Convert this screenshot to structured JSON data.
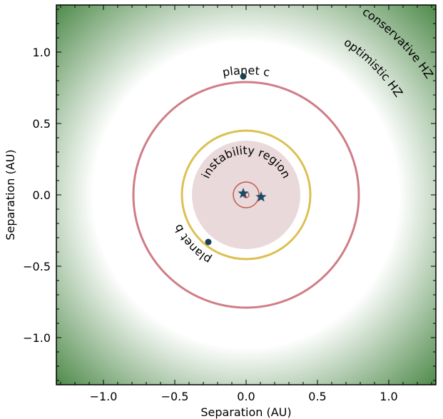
{
  "chart_data": {
    "type": "scatter",
    "xlabel": "Separation (AU)",
    "ylabel": "Separation (AU)",
    "xlim": [
      -1.33,
      1.33
    ],
    "ylim": [
      -1.33,
      1.33
    ],
    "xticks": [
      -1.0,
      -0.5,
      0.0,
      0.5,
      1.0
    ],
    "yticks": [
      -1.0,
      -0.5,
      0.0,
      0.5,
      1.0
    ],
    "xtick_labels": [
      "−1.0",
      "−0.5",
      "0.0",
      "0.5",
      "1.0"
    ],
    "ytick_labels": [
      "−1.0",
      "−0.5",
      "0.0",
      "0.5",
      "1.0"
    ],
    "grid": false,
    "colors": {
      "hz_outer": "#4e8a4a",
      "hz_inner": "#ffffff",
      "instability": "#ead9da",
      "orbit_c": "#d07c86",
      "orbit_b": "#dcc052",
      "binary_orbit": "#c05a4e",
      "star": "#1c4a66",
      "planet": "#1c3f55"
    },
    "zones": {
      "conservative_hz_outer_radius": 1.0,
      "optimistic_hz_outer_radius": 1.07,
      "optimistic_hz_inner_radius": 0.35,
      "instability_radius": 0.38
    },
    "orbits": [
      {
        "label": "planet c",
        "center": [
          0.0,
          0.0
        ],
        "radius": 0.79
      },
      {
        "label": "planet b",
        "center": [
          0.0,
          0.0
        ],
        "radius": 0.45
      },
      {
        "label": "binary",
        "center": [
          0.0,
          0.0
        ],
        "radius": 0.09
      },
      {
        "label": "binary",
        "center": [
          0.0,
          0.0
        ],
        "radius": 0.02
      }
    ],
    "stars": [
      {
        "x": -0.02,
        "y": 0.01
      },
      {
        "x": 0.105,
        "y": -0.015
      }
    ],
    "planets": [
      {
        "name": "planet c",
        "x": -0.02,
        "y": 0.83
      },
      {
        "name": "planet b",
        "x": -0.265,
        "y": -0.33
      }
    ],
    "annotations": {
      "conservative": "conservative  HZ",
      "optimistic": "optimistic  HZ",
      "instability": "instability  region",
      "planet_c": "planet  c",
      "planet_b": "planet  b"
    }
  }
}
